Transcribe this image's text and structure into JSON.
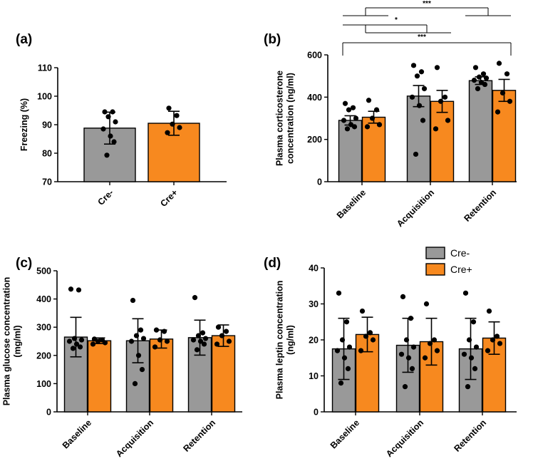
{
  "colors": {
    "cre_minus": "#999999",
    "cre_plus": "#f7891f"
  },
  "legend": {
    "items": [
      {
        "label": "Cre-",
        "color": "#999999"
      },
      {
        "label": "Cre+",
        "color": "#f7891f"
      }
    ]
  },
  "chart_data": [
    {
      "panel": "(a)",
      "type": "bar",
      "ylabel": "Freezing (%)",
      "ylim": [
        70,
        110
      ],
      "yticks": [
        70,
        80,
        90,
        100,
        110
      ],
      "categories": [
        "Cre-",
        "Cre+"
      ],
      "groups": [
        {
          "name": "Cre-",
          "color": "#999999",
          "mean": 88.8,
          "err": 5.6,
          "points": [
            94.5,
            94.5,
            92.8,
            91,
            88.5,
            86,
            84,
            79.3
          ]
        },
        {
          "name": "Cre+",
          "color": "#f7891f",
          "mean": 90.5,
          "err": 4.2,
          "points": [
            95.8,
            93.2,
            90.2,
            89,
            87.2
          ]
        }
      ]
    },
    {
      "panel": "(b)",
      "type": "bar",
      "ylabel_lines": [
        "Plasma corticosterone",
        "concentration (ng/ml)"
      ],
      "ylim": [
        0,
        600
      ],
      "yticks": [
        0,
        200,
        400,
        600
      ],
      "categories": [
        "Baseline",
        "Acquisition",
        "Retention"
      ],
      "series": [
        {
          "name": "Cre-",
          "color": "#999999",
          "means": [
            290,
            405,
            478
          ],
          "errs": [
            22,
            50,
            18
          ],
          "points": [
            [
              370,
              350,
              340,
              300,
              290,
              270,
              260,
              250
            ],
            [
              550,
              520,
              500,
              440,
              400,
              360,
              290,
              130
            ],
            [
              540,
              510,
              495,
              490,
              480,
              470,
              460,
              440
            ]
          ]
        },
        {
          "name": "Cre+",
          "color": "#f7891f",
          "means": [
            305,
            380,
            432
          ],
          "errs": [
            28,
            52,
            52
          ],
          "points": [
            [
              385,
              340,
              300,
              270,
              260
            ],
            [
              540,
              400,
              380,
              290,
              250
            ],
            [
              560,
              510,
              420,
              380,
              330
            ]
          ]
        }
      ],
      "significance": [
        {
          "label": "***"
        },
        {
          "label": "*"
        },
        {
          "label": "***"
        }
      ]
    },
    {
      "panel": "(c)",
      "type": "bar",
      "ylabel_lines": [
        "Plasma glucose concentration",
        "(mg/ml)"
      ],
      "ylim": [
        0,
        500
      ],
      "yticks": [
        0,
        100,
        200,
        300,
        400,
        500
      ],
      "categories": [
        "Baseline",
        "Acquisition",
        "Retention"
      ],
      "series": [
        {
          "name": "Cre-",
          "color": "#999999",
          "means": [
            265,
            252,
            263
          ],
          "errs": [
            70,
            78,
            62
          ],
          "points": [
            [
              435,
              432,
              260,
              255,
              250,
              240,
              230,
              225
            ],
            [
              395,
              290,
              270,
              260,
              250,
              200,
              150,
              100
            ],
            [
              405,
              280,
              270,
              260,
              255,
              250,
              240,
              220
            ]
          ]
        },
        {
          "name": "Cre+",
          "color": "#f7891f",
          "means": [
            252,
            258,
            270
          ],
          "errs": [
            10,
            32,
            38
          ],
          "points": [
            [
              258,
              255,
              250,
              245,
              240
            ],
            [
              290,
              285,
              255,
              250,
              230
            ],
            [
              300,
              285,
              270,
              250,
              240
            ]
          ]
        }
      ]
    },
    {
      "panel": "(d)",
      "type": "bar",
      "ylabel_lines": [
        "Plasma leptin concentration",
        "(ng/ml)"
      ],
      "ylim": [
        0,
        40
      ],
      "yticks": [
        0,
        10,
        20,
        30,
        40
      ],
      "categories": [
        "Baseline",
        "Acquisition",
        "Retention"
      ],
      "series": [
        {
          "name": "Cre-",
          "color": "#999999",
          "means": [
            17.5,
            18.5,
            17.5
          ],
          "errs": [
            8.5,
            7.5,
            8.5
          ],
          "points": [
            [
              33,
              25,
              20,
              18,
              17,
              15,
              12,
              8
            ],
            [
              32,
              26,
              20,
              18,
              16,
              15,
              12,
              7
            ],
            [
              33,
              25,
              20,
              18,
              16,
              15,
              12,
              7
            ]
          ]
        },
        {
          "name": "Cre+",
          "color": "#f7891f",
          "means": [
            21.5,
            19.5,
            20.5
          ],
          "errs": [
            4.8,
            6.5,
            4.5
          ],
          "points": [
            [
              28,
              22,
              21,
              20,
              17
            ],
            [
              30,
              20,
              19,
              17,
              15
            ],
            [
              28,
              21,
              20,
              19,
              17
            ]
          ]
        }
      ]
    }
  ]
}
